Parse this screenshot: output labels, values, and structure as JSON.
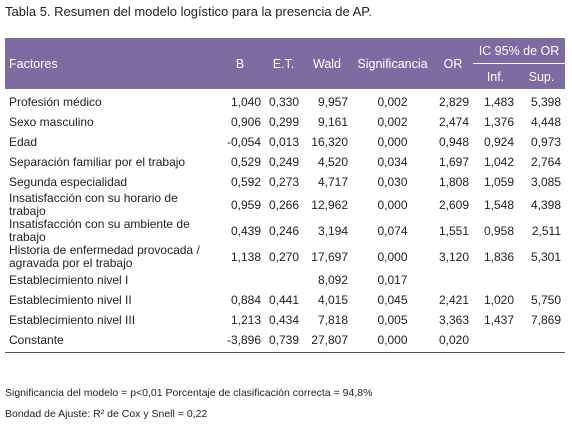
{
  "title": "Tabla 5. Resumen del modelo logístico para la presencia de AP.",
  "table": {
    "header": {
      "factores": "Factores",
      "b": "B",
      "et": "E.T.",
      "wald": "Wald",
      "significancia": "Significancia",
      "or": "OR",
      "ic": "IC 95% de OR",
      "inf": "Inf.",
      "sup": "Sup."
    },
    "rows": [
      [
        "Profesión médico",
        "1,040",
        "0,330",
        "9,957",
        "0,002",
        "2,829",
        "1,483",
        "5,398"
      ],
      [
        "Sexo masculino",
        "0,906",
        "0,299",
        "9,161",
        "0,002",
        "2,474",
        "1,376",
        "4,448"
      ],
      [
        "Edad",
        "-0,054",
        "0,013",
        "16,320",
        "0,000",
        "0,948",
        "0,924",
        "0,973"
      ],
      [
        "Separación familiar por el trabajo",
        "0,529",
        "0,249",
        "4,520",
        "0,034",
        "1,697",
        "1,042",
        "2,764"
      ],
      [
        "Segunda especialidad",
        "0,592",
        "0,273",
        "4,717",
        "0,030",
        "1,808",
        "1,059",
        "3,085"
      ],
      [
        "Insatisfacción con su horario de trabajo",
        "0,959",
        "0,266",
        "12,962",
        "0,000",
        "2,609",
        "1,548",
        "4,398"
      ],
      [
        "Insatisfacción con su ambiente de trabajo",
        "0,439",
        "0,246",
        "3,194",
        "0,074",
        "1,551",
        "0,958",
        "2,511"
      ],
      [
        "Historia de enfermedad provocada / agravada por el trabajo",
        "1,138",
        "0,270",
        "17,697",
        "0,000",
        "3,120",
        "1,836",
        "5,301"
      ],
      [
        "Establecimiento nivel I",
        null,
        null,
        "8,092",
        "0,017",
        null,
        null,
        null
      ],
      [
        "Establecimiento nivel II",
        "0,884",
        "0,441",
        "4,015",
        "0,045",
        "2,421",
        "1,020",
        "5,750"
      ],
      [
        "Establecimiento nivel III",
        "1,213",
        "0,434",
        "7,818",
        "0,005",
        "3,363",
        "1,437",
        "7,869"
      ],
      [
        "Constante",
        "-3,896",
        "0,739",
        "27,807",
        "0,000",
        "0,020",
        null,
        null
      ]
    ]
  },
  "notes": [
    "Significancia del modelo = p<0,01 Porcentaje de clasificación correcta = 94,8%",
    "Bondad de Ajuste: R² de Cox y Snell = 0,22"
  ]
}
